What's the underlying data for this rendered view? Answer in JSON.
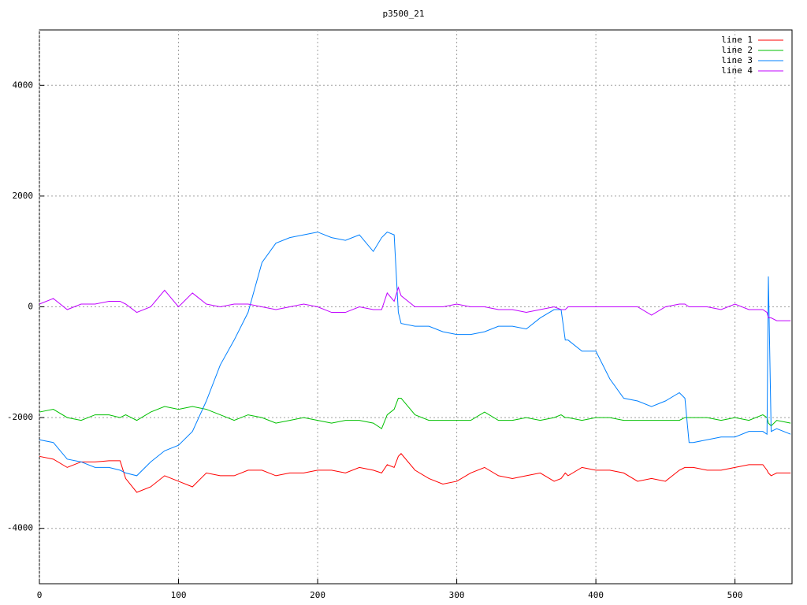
{
  "chart_data": {
    "type": "line",
    "title": "p3500_21",
    "x": [
      0,
      10,
      20,
      30,
      40,
      50,
      58,
      62,
      70,
      80,
      90,
      100,
      110,
      120,
      130,
      140,
      150,
      160,
      170,
      180,
      190,
      200,
      210,
      220,
      230,
      240,
      246,
      250,
      255,
      258,
      260,
      270,
      280,
      290,
      300,
      310,
      320,
      330,
      340,
      350,
      360,
      370,
      375,
      378,
      380,
      390,
      400,
      410,
      420,
      430,
      440,
      450,
      460,
      464,
      467,
      470,
      480,
      490,
      500,
      510,
      520,
      523,
      524,
      526,
      530,
      540
    ],
    "series": [
      {
        "name": "line 1",
        "color": "#ff0000",
        "values": [
          -2700,
          -2750,
          -2900,
          -2800,
          -2800,
          -2780,
          -2780,
          -3100,
          -3350,
          -3250,
          -3050,
          -3150,
          -3250,
          -3000,
          -3050,
          -3050,
          -2950,
          -2950,
          -3050,
          -3000,
          -3000,
          -2950,
          -2950,
          -3000,
          -2900,
          -2950,
          -3000,
          -2850,
          -2900,
          -2700,
          -2650,
          -2950,
          -3100,
          -3200,
          -3150,
          -3000,
          -2900,
          -3050,
          -3100,
          -3050,
          -3000,
          -3150,
          -3100,
          -3000,
          -3050,
          -2900,
          -2950,
          -2950,
          -3000,
          -3150,
          -3100,
          -3150,
          -2950,
          -2900,
          -2900,
          -2900,
          -2950,
          -2950,
          -2900,
          -2850,
          -2850,
          -2950,
          -3000,
          -3050,
          -3000,
          -3000
        ]
      },
      {
        "name": "line 2",
        "color": "#00c000",
        "values": [
          -1900,
          -1850,
          -2000,
          -2050,
          -1950,
          -1950,
          -2000,
          -1950,
          -2050,
          -1900,
          -1800,
          -1850,
          -1800,
          -1850,
          -1950,
          -2050,
          -1950,
          -2000,
          -2100,
          -2050,
          -2000,
          -2050,
          -2100,
          -2050,
          -2050,
          -2100,
          -2200,
          -1950,
          -1850,
          -1650,
          -1650,
          -1950,
          -2050,
          -2050,
          -2050,
          -2050,
          -1900,
          -2050,
          -2050,
          -2000,
          -2050,
          -2000,
          -1950,
          -2000,
          -2000,
          -2050,
          -2000,
          -2000,
          -2050,
          -2050,
          -2050,
          -2050,
          -2050,
          -2000,
          -2000,
          -2000,
          -2000,
          -2050,
          -2000,
          -2050,
          -1950,
          -2000,
          -2100,
          -2150,
          -2050,
          -2100
        ]
      },
      {
        "name": "line 3",
        "color": "#0080ff",
        "values": [
          -2400,
          -2450,
          -2750,
          -2800,
          -2900,
          -2900,
          -2950,
          -3000,
          -3050,
          -2800,
          -2600,
          -2500,
          -2250,
          -1700,
          -1050,
          -600,
          -100,
          800,
          1150,
          1250,
          1300,
          1350,
          1250,
          1200,
          1300,
          1000,
          1250,
          1350,
          1300,
          -100,
          -300,
          -350,
          -350,
          -450,
          -500,
          -500,
          -450,
          -350,
          -350,
          -400,
          -200,
          -50,
          -50,
          -600,
          -600,
          -800,
          -800,
          -1300,
          -1650,
          -1700,
          -1800,
          -1700,
          -1550,
          -1650,
          -2450,
          -2450,
          -2400,
          -2350,
          -2350,
          -2250,
          -2250,
          -2300,
          550,
          -2250,
          -2200,
          -2300
        ]
      },
      {
        "name": "line 4",
        "color": "#c000ff",
        "values": [
          50,
          150,
          -50,
          50,
          50,
          100,
          100,
          50,
          -100,
          0,
          300,
          0,
          250,
          50,
          0,
          50,
          50,
          0,
          -50,
          0,
          50,
          0,
          -100,
          -100,
          0,
          -50,
          -50,
          250,
          100,
          350,
          200,
          0,
          0,
          0,
          50,
          0,
          0,
          -50,
          -50,
          -100,
          -50,
          0,
          -50,
          -50,
          0,
          0,
          0,
          0,
          0,
          0,
          -150,
          0,
          50,
          50,
          0,
          0,
          0,
          -50,
          50,
          -50,
          -50,
          -100,
          -200,
          -200,
          -250,
          -250
        ]
      }
    ],
    "xlim": [
      0,
      541
    ],
    "xticks": [
      0,
      100,
      200,
      300,
      400,
      500
    ],
    "ylim": [
      -5000,
      5000
    ],
    "yticks": [
      -4000,
      -2000,
      0,
      2000,
      4000
    ],
    "grid": true,
    "legend": "top-right"
  }
}
